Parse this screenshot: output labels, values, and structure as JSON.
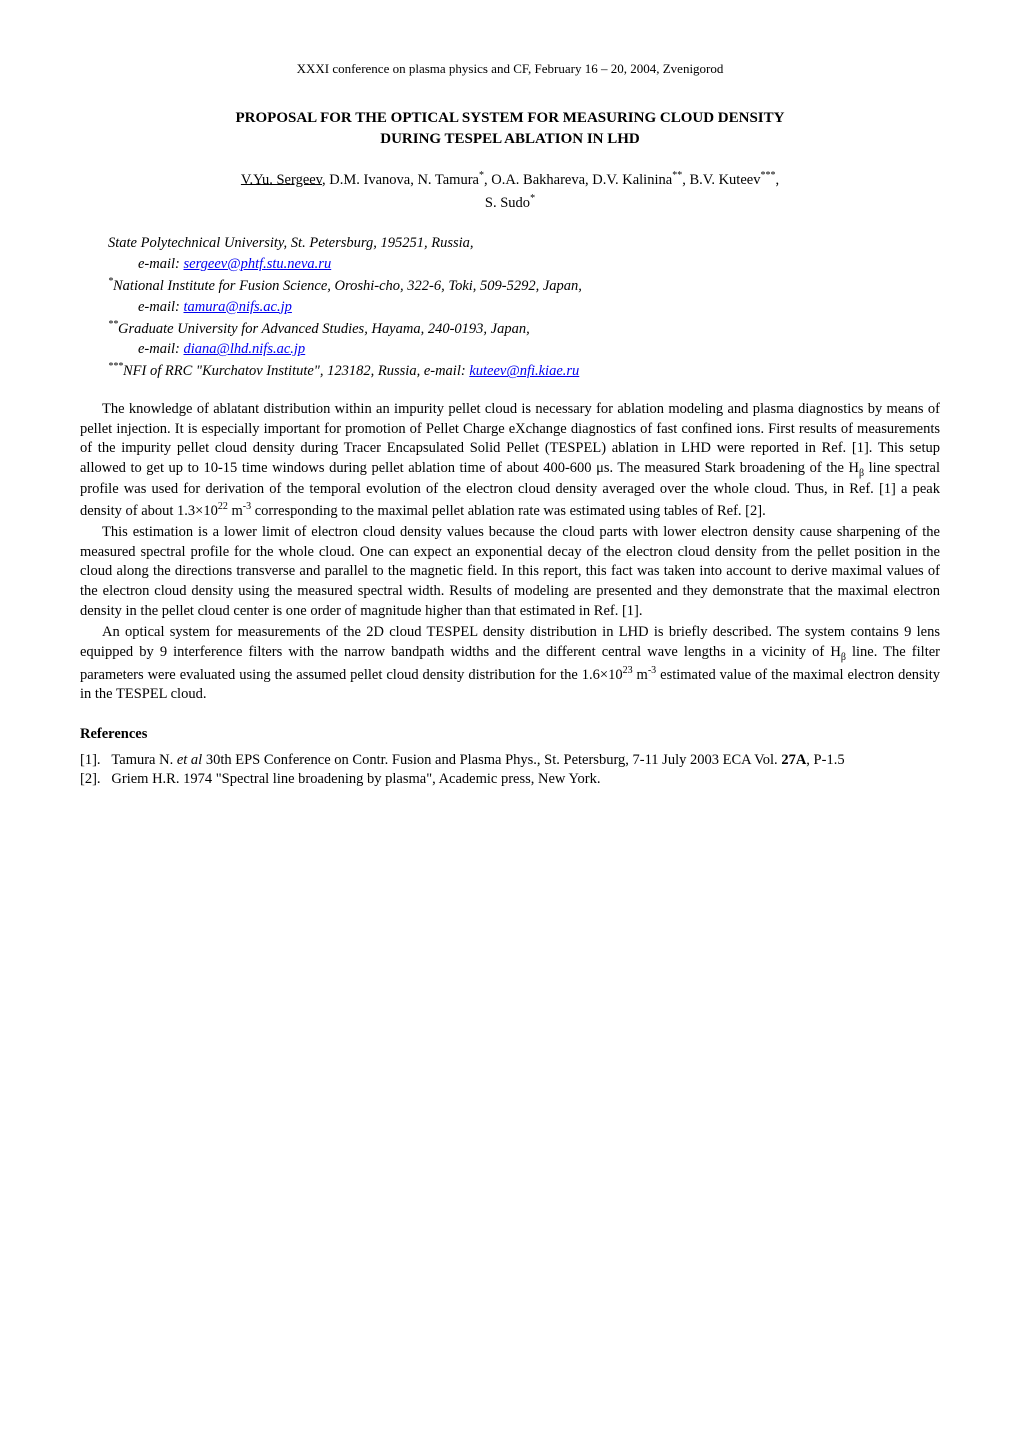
{
  "header": "XXXI conference on plasma physics and CF, February 16 – 20, 2004, Zvenigorod",
  "title_line1": "PROPOSAL FOR THE OPTICAL SYSTEM FOR MEASURING CLOUD DENSITY",
  "title_line2": "DURING TESPEL ABLATION IN LHD",
  "authors": {
    "underlined": "V.Yu. Sergeev",
    "after_underlined": ", D.M. Ivanova, N. Tamura",
    "sup1": "*",
    "seg2": ", O.A. Bakhareva, D.V. Kalinina",
    "sup2": "**",
    "seg3": ", B.V. Kuteev",
    "sup3": "***",
    "seg4": ",",
    "line2": "S. Sudo",
    "sup4": "*"
  },
  "affil": {
    "a0_line": "State Polytechnical University, St. Petersburg, 195251, Russia,",
    "a0_email_label": "e-mail: ",
    "a0_email": "sergeev@phtf.stu.neva.ru",
    "a1_sup": "*",
    "a1_line": "National Institute for Fusion Science, Oroshi-cho, 322-6, Toki, 509-5292, Japan,",
    "a1_email_label": "e-mail: ",
    "a1_email": "tamura@nifs.ac.jp",
    "a2_sup": "**",
    "a2_line": "Graduate University for Advanced Studies, Hayama, 240-0193, Japan,",
    "a2_email_label": "e-mail: ",
    "a2_email": "diana@lhd.nifs.ac.jp",
    "a3_sup": "***",
    "a3_line": "NFI of RRC \"Kurchatov Institute\", 123182, Russia, e-mail: ",
    "a3_email": "kuteev@nfi.kiae.ru"
  },
  "para1": {
    "s1": "The knowledge of ablatant distribution within an impurity pellet cloud is necessary for ablation modeling and plasma diagnostics by means of pellet injection. It is especially important for promotion of Pellet Charge eXchange diagnostics of fast confined ions. First results of measurements of the impurity pellet cloud density during Tracer Encapsulated Solid Pellet (TESPEL) ablation in LHD were reported in Ref. [1]. This setup allowed to get up to 10-15 time windows during pellet ablation time of about 400-600 μs. The measured Stark broadening of the H",
    "sub1": "β",
    "s2": " line spectral profile was used for derivation of the temporal evolution of the electron cloud density averaged over the whole cloud. Thus, in Ref. [1] a peak density of about 1.3×10",
    "sup1": "22",
    "s3": " m",
    "sup2": "-3",
    "s4": " corresponding to the maximal pellet ablation rate was estimated using tables of Ref. [2]."
  },
  "para2": "This estimation is a lower limit of electron cloud density values because the cloud parts with lower electron density cause sharpening of the measured spectral profile for the whole cloud. One can expect an exponential decay of the electron cloud density from the pellet position in the cloud along the directions transverse and parallel to the magnetic field. In this report, this fact was taken into account to derive maximal values of the electron cloud density using the measured spectral width. Results of modeling are presented and they demonstrate that the maximal electron density in the pellet cloud center is one order of magnitude higher than that estimated in Ref. [1].",
  "para3": {
    "s1": "An optical system for measurements of the 2D cloud TESPEL density distribution in LHD is briefly described. The system contains 9 lens equipped by 9 interference filters with the narrow bandpath widths and the different central wave lengths in a vicinity of H",
    "sub1": "β",
    "s2": " line. The filter parameters were evaluated using the assumed pellet cloud density distribution for the 1.6×10",
    "sup1": "23",
    "s3": " m",
    "sup2": "-3",
    "s4": " estimated value of the maximal electron density in the TESPEL cloud."
  },
  "references_heading": "References",
  "ref1": {
    "num": "[1].",
    "pre": "Tamura N. ",
    "ital": "et al",
    "seg2": " 30th EPS Conference on Contr. Fusion and Plasma Phys., St. Petersburg, 7-11 July 2003 ECA Vol. ",
    "bold": "27A",
    "seg3": ", P-1.5"
  },
  "ref2": {
    "num": "[2].",
    "text": "Griem H.R. 1974 \"Spectral line broadening by plasma\", Academic press, New York."
  }
}
